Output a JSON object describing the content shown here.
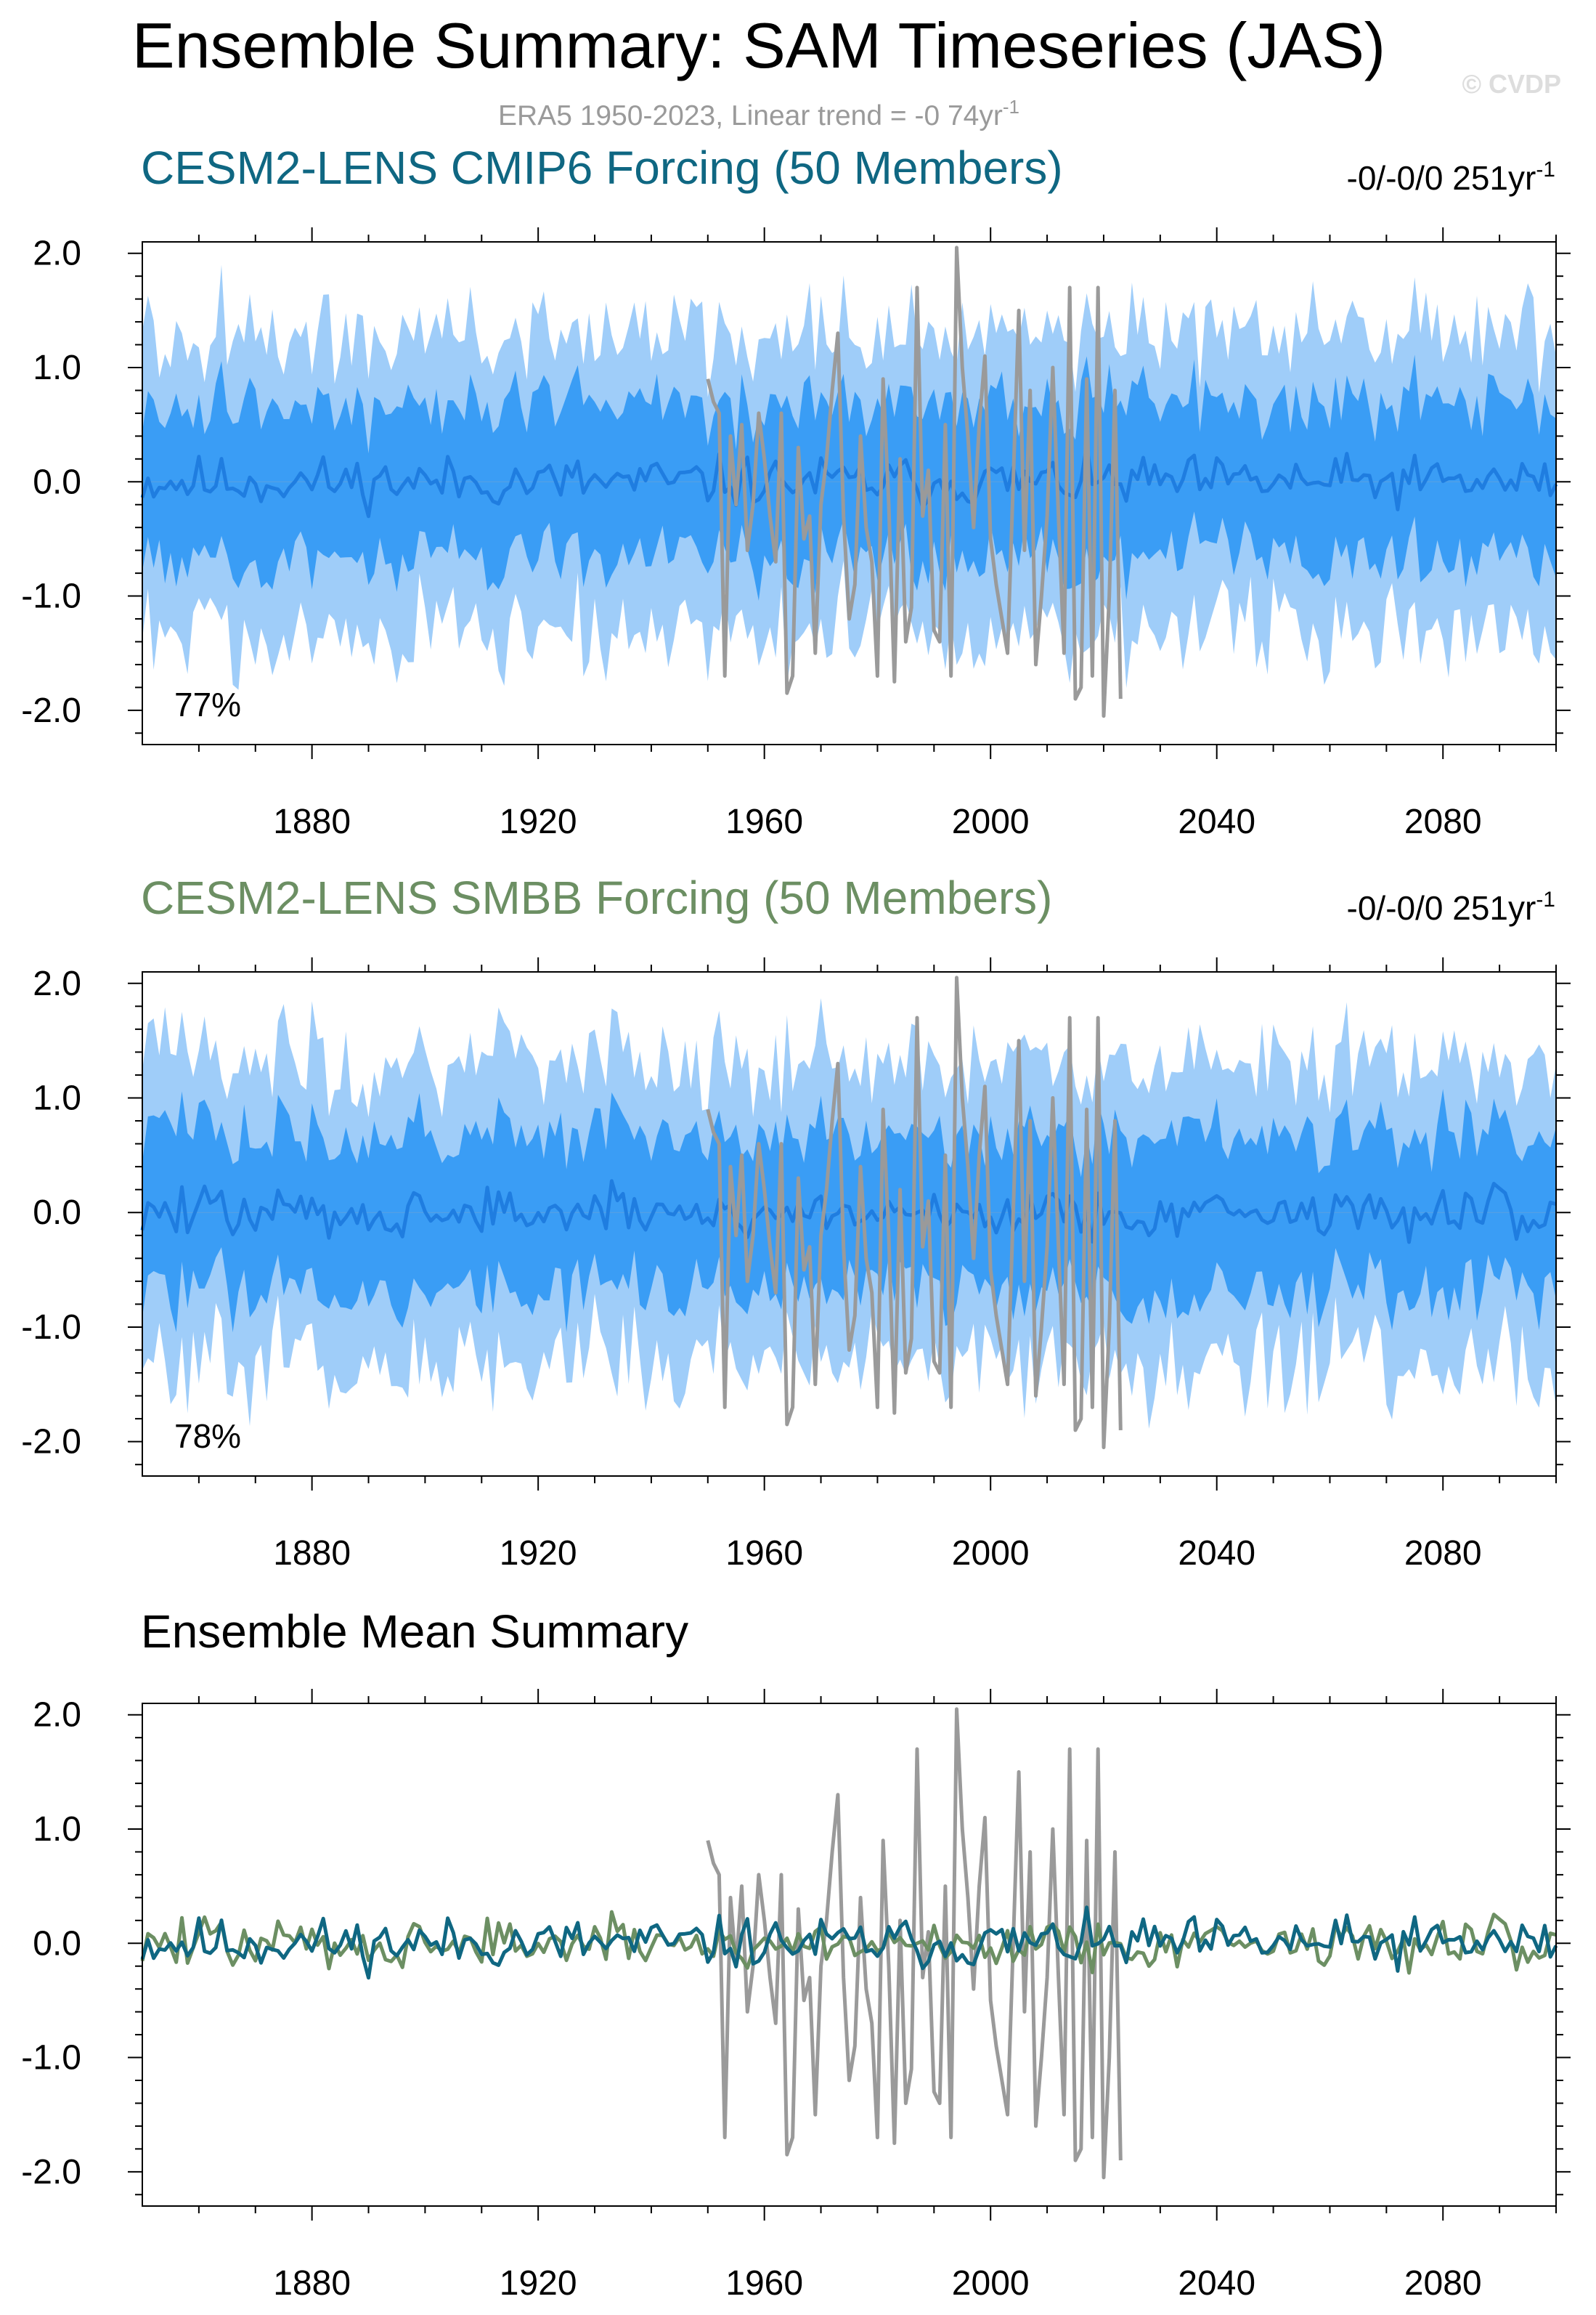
{
  "page": {
    "title": "Ensemble Summary: SAM Timeseries (JAS)",
    "subtitle_main": "ERA5 1950-2023, Linear trend = -0 74yr",
    "subtitle_sup": "-1",
    "watermark": "© CVDP"
  },
  "colors": {
    "cmip6": "#0f6782",
    "smbb": "#6c8f63",
    "obs": "#9a9a9a",
    "outer_band": "#9fcdf9",
    "inner_band": "#3a9df5",
    "mean_line": "#1f7de0"
  },
  "panels": [
    {
      "title": "CESM2-LENS CMIP6 Forcing (50 Members)",
      "title_color": "#0f6782",
      "trend_main": "-0/-0/0 251yr",
      "trend_sup": "-1",
      "pct": "77%"
    },
    {
      "title": "CESM2-LENS SMBB Forcing (50 Members)",
      "title_color": "#6c8f63",
      "trend_main": "-0/-0/0 251yr",
      "trend_sup": "-1",
      "pct": "78%"
    },
    {
      "title": "Ensemble Mean Summary",
      "title_color": "#000000",
      "trend_main": "",
      "trend_sup": "",
      "pct": ""
    }
  ],
  "chart_data": {
    "type": "line",
    "x_range": [
      1850,
      2100
    ],
    "y_range": [
      -2.3,
      2.1
    ],
    "x_ticks": [
      "1880",
      "1920",
      "1960",
      "2000",
      "2040",
      "2080"
    ],
    "y_ticks": [
      "2.0",
      "1.0",
      "0.0",
      "-1.0",
      "-2.0"
    ],
    "era5_years": [
      1950,
      2023
    ],
    "era5": [
      0.9,
      0.7,
      0.6,
      -1.7,
      0.4,
      -0.2,
      0.5,
      -0.6,
      -0.2,
      0.6,
      0.2,
      -0.3,
      -0.7,
      0.6,
      -1.85,
      -1.7,
      0.3,
      -0.5,
      -0.3,
      -1.5,
      -0.2,
      0.2,
      0.8,
      1.3,
      -0.3,
      -1.2,
      -0.9,
      0.4,
      -0.4,
      -0.7,
      -1.7,
      0.9,
      -0.2,
      -1.75,
      0.2,
      -1.4,
      -1.1,
      1.7,
      -0.3,
      0.1,
      -1.3,
      -1.4,
      0.5,
      -1.7,
      2.05,
      1.0,
      0.4,
      -0.4,
      0.5,
      1.1,
      -0.5,
      -0.9,
      -1.2,
      -1.5,
      0.0,
      1.5,
      -0.6,
      0.8,
      -1.6,
      -1.0,
      -0.3,
      1.0,
      -0.3,
      -1.5,
      1.7,
      -1.9,
      -1.8,
      0.9,
      -1.7,
      1.7,
      -2.05,
      -1.0,
      0.8,
      -1.9
    ]
  }
}
